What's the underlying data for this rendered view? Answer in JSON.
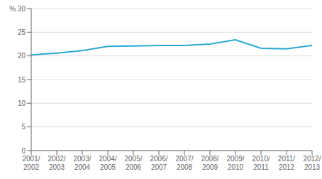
{
  "chart_data": {
    "type": "line",
    "categories": [
      "2001/\n2002",
      "2002/\n2003",
      "2003/\n2004",
      "2004/\n2005",
      "2005/\n2006",
      "2006/\n2007",
      "2007/\n2008",
      "2008/\n2009",
      "2009/\n2010",
      "2010/\n2011",
      "2011/\n2012",
      "2012/\n2013"
    ],
    "values": [
      20.2,
      20.6,
      21.1,
      22.0,
      22.1,
      22.2,
      22.2,
      22.5,
      23.4,
      21.6,
      21.5,
      22.2
    ],
    "color": "#29a9d4",
    "ylim": [
      0,
      30
    ],
    "yticks": [
      0,
      5,
      10,
      15,
      20,
      25,
      {
        "value": 30,
        "label": "% 30"
      }
    ],
    "grid": true
  }
}
